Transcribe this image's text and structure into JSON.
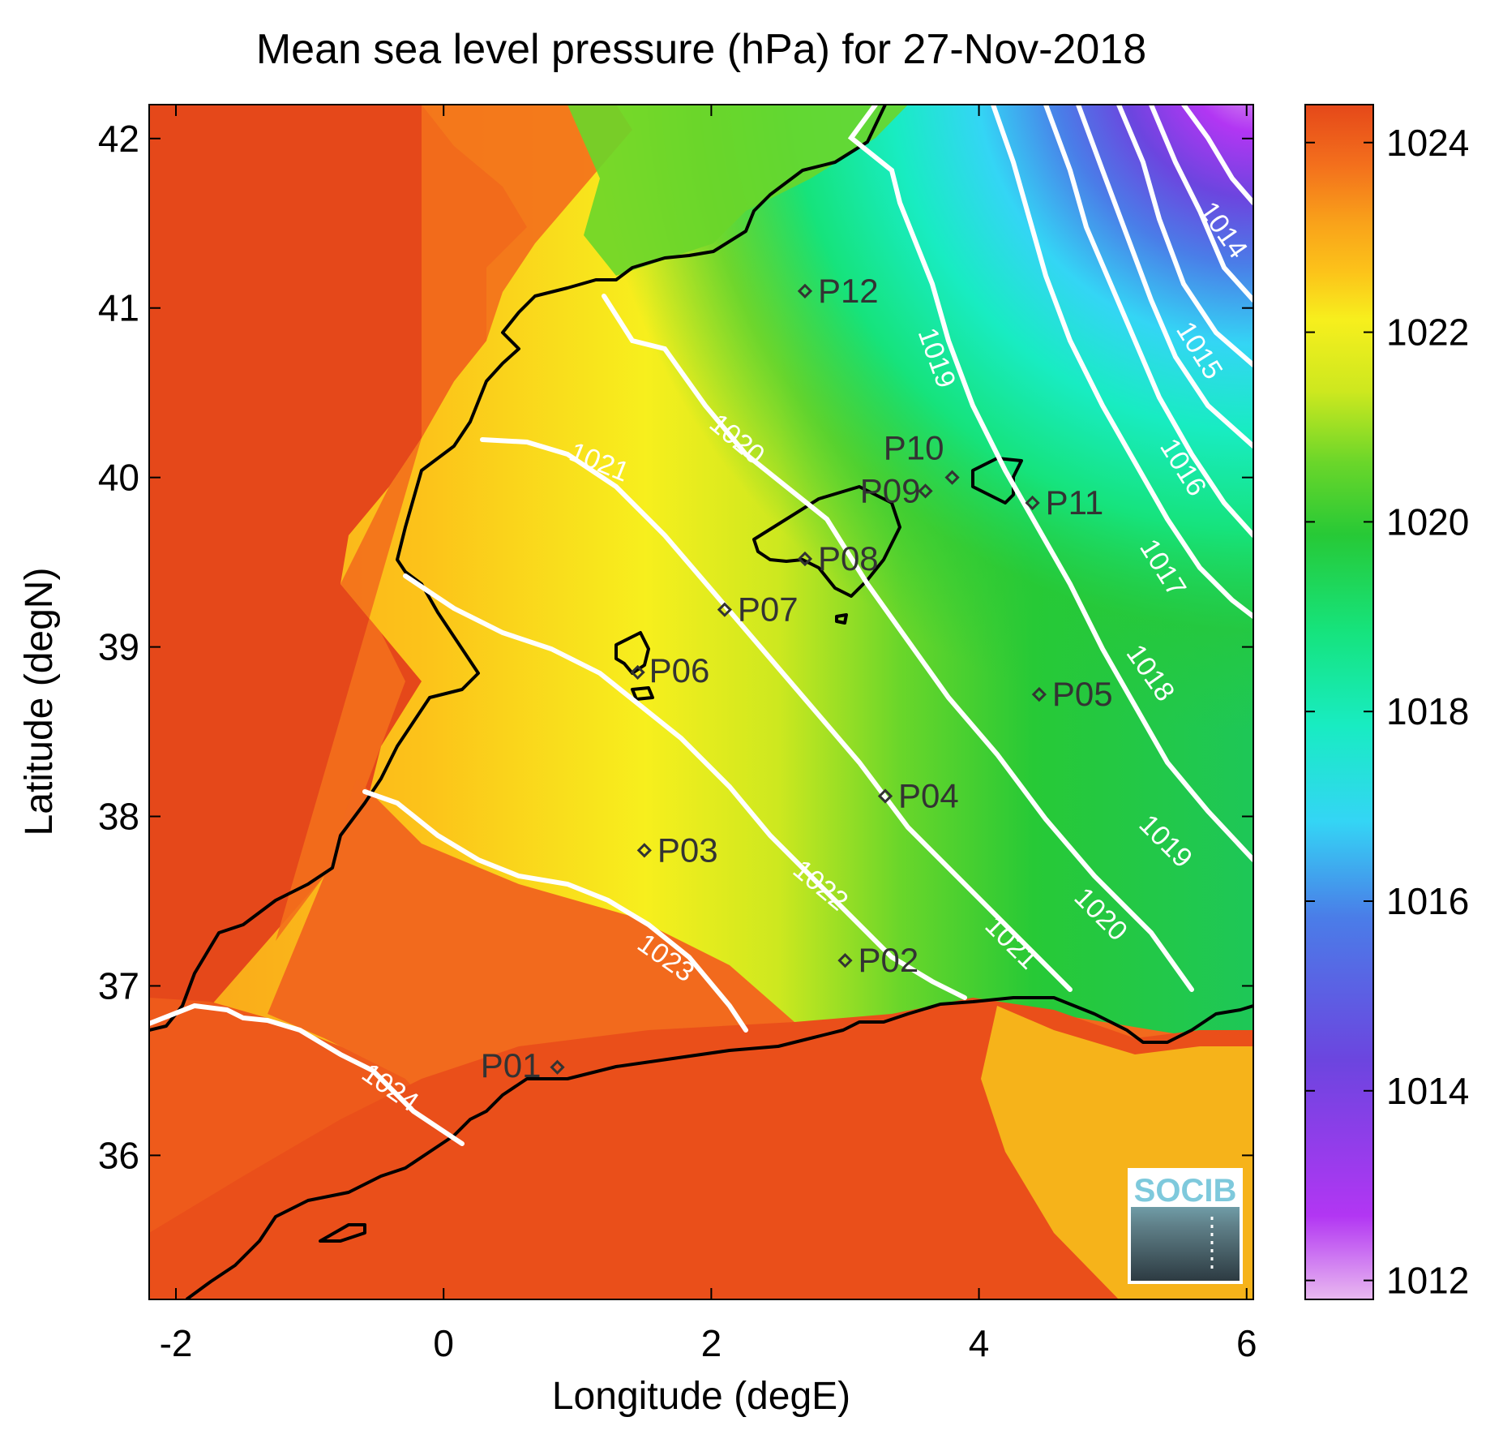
{
  "title": "Mean sea level pressure (hPa) for 27-Nov-2018",
  "xlabel": "Longitude (degE)",
  "ylabel": "Latitude (degN)",
  "logo_text": "SOCIB",
  "colors": {
    "coast": "#000000",
    "contour": "#ffffff",
    "station": "#333333"
  },
  "chart_data": {
    "type": "heatmap",
    "xlim": [
      -2.2,
      6.05
    ],
    "ylim": [
      35.15,
      42.2
    ],
    "x_ticks": [
      -2,
      0,
      2,
      4,
      6
    ],
    "x_tick_labels": [
      "-2",
      "0",
      "2",
      "4",
      "6"
    ],
    "y_ticks": [
      36,
      37,
      38,
      39,
      40,
      41,
      42
    ],
    "y_tick_labels": [
      "36",
      "37",
      "38",
      "39",
      "40",
      "41",
      "42"
    ],
    "colorbar": {
      "range": [
        1011.8,
        1024.4
      ],
      "ticks": [
        1012,
        1014,
        1016,
        1018,
        1020,
        1022,
        1024
      ],
      "tick_labels": [
        "1012",
        "1014",
        "1016",
        "1018",
        "1020",
        "1022",
        "1024"
      ],
      "colormap": [
        "#e9b9f0",
        "#b236f3",
        "#6c45df",
        "#4a7de8",
        "#34d5f5",
        "#18ecc2",
        "#16e37c",
        "#27c936",
        "#6ad62a",
        "#cde81f",
        "#f7ef1d",
        "#fcc31a",
        "#f9a31a",
        "#f36f1c",
        "#e5481a"
      ]
    },
    "contour_labels": [
      "1014",
      "1015",
      "1016",
      "1017",
      "1018",
      "1019",
      "1019",
      "1020",
      "1020",
      "1021",
      "1021",
      "1022",
      "1023",
      "1024"
    ],
    "stations": [
      {
        "name": "P01",
        "lon": 0.85,
        "lat": 36.52
      },
      {
        "name": "P02",
        "lon": 3.0,
        "lat": 37.15
      },
      {
        "name": "P03",
        "lon": 1.5,
        "lat": 37.8
      },
      {
        "name": "P04",
        "lon": 3.3,
        "lat": 38.12
      },
      {
        "name": "P05",
        "lon": 4.45,
        "lat": 38.72
      },
      {
        "name": "P06",
        "lon": 1.45,
        "lat": 38.85
      },
      {
        "name": "P07",
        "lon": 2.1,
        "lat": 39.22
      },
      {
        "name": "P08",
        "lon": 2.7,
        "lat": 39.52
      },
      {
        "name": "P09",
        "lon": 3.6,
        "lat": 39.92
      },
      {
        "name": "P10",
        "lon": 3.8,
        "lat": 40.0
      },
      {
        "name": "P11",
        "lon": 4.4,
        "lat": 39.85
      },
      {
        "name": "P12",
        "lon": 2.7,
        "lat": 41.1
      }
    ]
  }
}
